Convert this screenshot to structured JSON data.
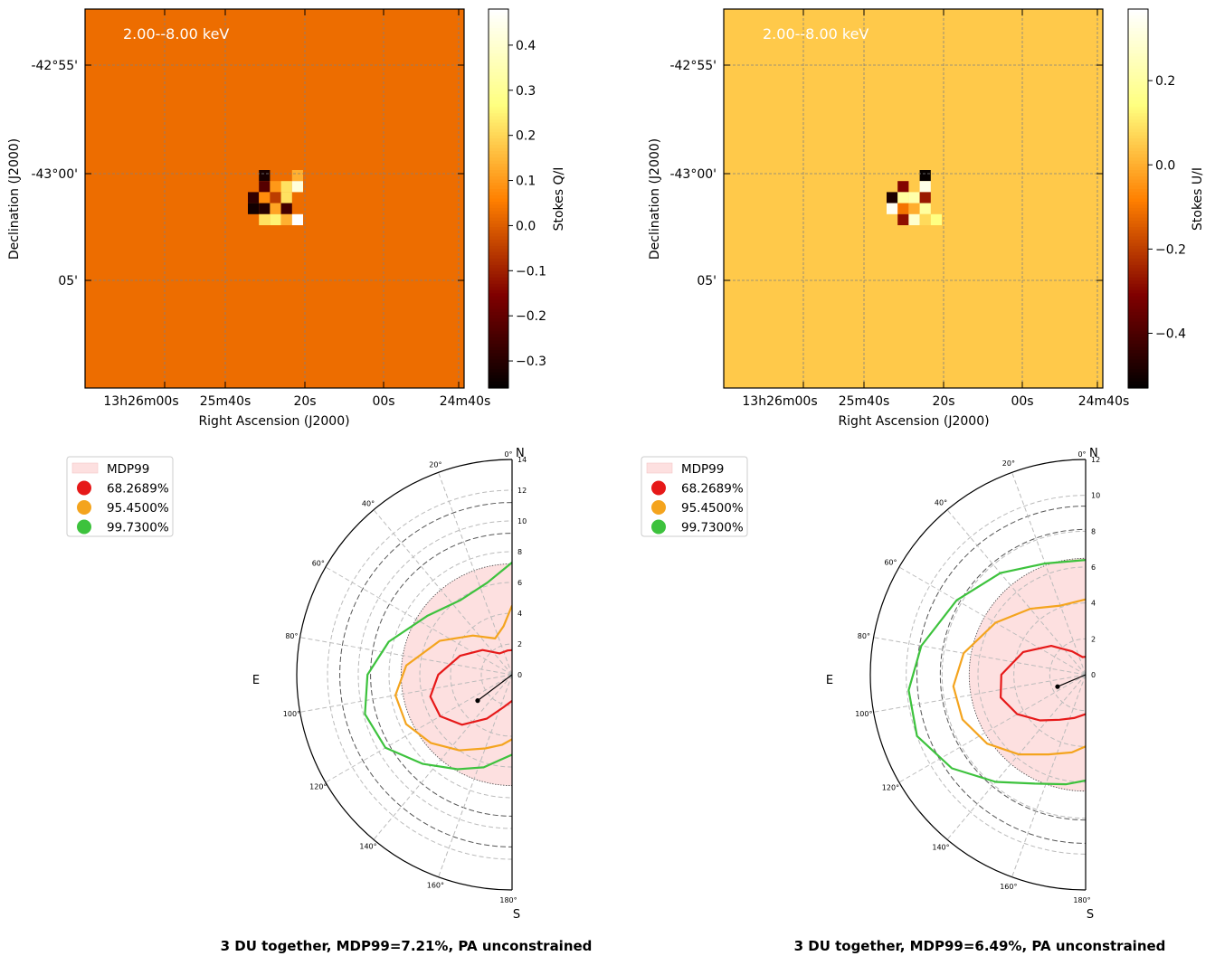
{
  "panels": [
    {
      "energy_label": "2.00--8.00 keV",
      "colorbar_label": "Stokes Q/I",
      "xlabel": "Right Ascension (J2000)",
      "ylabel": "Declination (J2000)",
      "background_value": 0.03,
      "colorbar_range": [
        -0.36,
        0.48
      ],
      "colorbar_ticks": [
        "0.4",
        "0.3",
        "0.2",
        "0.1",
        "0.0",
        "−0.1",
        "−0.2",
        "−0.3"
      ],
      "colorbar_tick_values": [
        0.4,
        0.3,
        0.2,
        0.1,
        0.0,
        -0.1,
        -0.2,
        -0.3
      ],
      "ra_ticks": [
        "13h26m00s",
        "25m40s",
        "20s",
        "00s",
        "24m40s"
      ],
      "dec_ticks": [
        "-42°55'",
        "-43°00'",
        "05'"
      ],
      "pixels": [
        {
          "col": 1,
          "row": 0,
          "v": -0.32
        },
        {
          "col": 4,
          "row": 0,
          "v": 0.14
        },
        {
          "col": 1,
          "row": 1,
          "v": -0.22
        },
        {
          "col": 2,
          "row": 1,
          "v": 0.1
        },
        {
          "col": 3,
          "row": 1,
          "v": 0.22
        },
        {
          "col": 4,
          "row": 1,
          "v": 0.42
        },
        {
          "col": 0,
          "row": 2,
          "v": -0.28
        },
        {
          "col": 1,
          "row": 2,
          "v": 0.08
        },
        {
          "col": 2,
          "row": 2,
          "v": -0.05
        },
        {
          "col": 3,
          "row": 2,
          "v": 0.22
        },
        {
          "col": 0,
          "row": 3,
          "v": -0.33
        },
        {
          "col": 1,
          "row": 3,
          "v": -0.3
        },
        {
          "col": 2,
          "row": 3,
          "v": 0.12
        },
        {
          "col": 3,
          "row": 3,
          "v": -0.25
        },
        {
          "col": 1,
          "row": 4,
          "v": 0.22
        },
        {
          "col": 2,
          "row": 4,
          "v": 0.25
        },
        {
          "col": 3,
          "row": 4,
          "v": 0.14
        },
        {
          "col": 4,
          "row": 4,
          "v": 0.48
        }
      ]
    },
    {
      "energy_label": "2.00--8.00 keV",
      "colorbar_label": "Stokes U/I",
      "xlabel": "Right Ascension (J2000)",
      "ylabel": "Declination (J2000)",
      "background_value": 0.05,
      "colorbar_range": [
        -0.53,
        0.37
      ],
      "colorbar_ticks": [
        "0.2",
        "0.0",
        "−0.2",
        "−0.4"
      ],
      "colorbar_tick_values": [
        0.2,
        0.0,
        -0.2,
        -0.4
      ],
      "ra_ticks": [
        "13h26m00s",
        "25m40s",
        "20s",
        "00s",
        "24m40s"
      ],
      "dec_ticks": [
        "-42°55'",
        "-43°00'",
        "05'"
      ],
      "pixels": [
        {
          "col": 3,
          "row": 0,
          "v": -0.52
        },
        {
          "col": 1,
          "row": 1,
          "v": -0.3
        },
        {
          "col": 3,
          "row": 1,
          "v": 0.33
        },
        {
          "col": 0,
          "row": 2,
          "v": -0.48
        },
        {
          "col": 1,
          "row": 2,
          "v": 0.2
        },
        {
          "col": 2,
          "row": 2,
          "v": 0.22
        },
        {
          "col": 3,
          "row": 2,
          "v": -0.26
        },
        {
          "col": 0,
          "row": 3,
          "v": 0.35
        },
        {
          "col": 1,
          "row": 3,
          "v": -0.1
        },
        {
          "col": 2,
          "row": 3,
          "v": 0.0
        },
        {
          "col": 3,
          "row": 3,
          "v": 0.2
        },
        {
          "col": 1,
          "row": 4,
          "v": -0.28
        },
        {
          "col": 2,
          "row": 4,
          "v": 0.28
        },
        {
          "col": 3,
          "row": 4,
          "v": 0.08
        },
        {
          "col": 4,
          "row": 4,
          "v": 0.15
        }
      ]
    }
  ],
  "polar": [
    {
      "caption": "3 DU together, MDP99=7.21%, PA unconstrained",
      "r_max": 14,
      "r_ticks": [
        0,
        2,
        4,
        6,
        8,
        10,
        12,
        14
      ],
      "theta_ticks": [
        "0°",
        "20°",
        "40°",
        "60°",
        "80°",
        "100°",
        "120°",
        "140°",
        "160°",
        "180°"
      ],
      "mdp99": 7.21,
      "point": {
        "pa_deg": 127,
        "pd": 2.8
      },
      "legend": [
        {
          "label": "MDP99",
          "color": "#fde0e0",
          "kind": "patch"
        },
        {
          "label": "68.2689%",
          "color": "#e61919",
          "kind": "dot"
        },
        {
          "label": "95.4500%",
          "color": "#f4a41e",
          "kind": "dot"
        },
        {
          "label": "99.7300%",
          "color": "#3dc23d",
          "kind": "dot"
        }
      ],
      "compass": {
        "N": "N",
        "S": "S",
        "E": "E"
      },
      "dashed_circles": [
        9.2,
        11.2
      ],
      "contours": [
        {
          "color": "#e61919",
          "pts": [
            [
              0,
              1.6
            ],
            [
              10,
              1.6
            ],
            [
              30,
              1.6
            ],
            [
              50,
              2.5
            ],
            [
              70,
              3.6
            ],
            [
              90,
              4.8
            ],
            [
              105,
              5.5
            ],
            [
              120,
              5.4
            ],
            [
              135,
              4.6
            ],
            [
              150,
              3.3
            ],
            [
              165,
              2.2
            ],
            [
              180,
              1.7
            ]
          ]
        },
        {
          "color": "#f4a41e",
          "pts": [
            [
              0,
              4.5
            ],
            [
              10,
              3.2
            ],
            [
              25,
              2.6
            ],
            [
              45,
              3.6
            ],
            [
              65,
              5.2
            ],
            [
              85,
              6.9
            ],
            [
              100,
              7.7
            ],
            [
              115,
              7.6
            ],
            [
              130,
              6.9
            ],
            [
              145,
              6.0
            ],
            [
              160,
              5.1
            ],
            [
              172,
              4.6
            ],
            [
              180,
              4.2
            ]
          ]
        },
        {
          "color": "#3dc23d",
          "pts": [
            [
              0,
              7.3
            ],
            [
              15,
              6.2
            ],
            [
              35,
              5.9
            ],
            [
              55,
              6.7
            ],
            [
              75,
              8.3
            ],
            [
              90,
              9.4
            ],
            [
              105,
              9.9
            ],
            [
              120,
              9.5
            ],
            [
              135,
              8.2
            ],
            [
              150,
              7.1
            ],
            [
              163,
              6.3
            ],
            [
              172,
              5.6
            ],
            [
              180,
              5.2
            ]
          ]
        }
      ]
    },
    {
      "caption": "3 DU together, MDP99=6.49%, PA unconstrained",
      "r_max": 12,
      "r_ticks": [
        0,
        2,
        4,
        6,
        8,
        10,
        12
      ],
      "theta_ticks": [
        "0°",
        "20°",
        "40°",
        "60°",
        "80°",
        "100°",
        "120°",
        "140°",
        "160°",
        "180°"
      ],
      "mdp99": 6.49,
      "point": {
        "pa_deg": 113,
        "pd": 1.7
      },
      "legend": [
        {
          "label": "MDP99",
          "color": "#fde0e0",
          "kind": "patch"
        },
        {
          "label": "68.2689%",
          "color": "#e61919",
          "kind": "dot"
        },
        {
          "label": "95.4500%",
          "color": "#f4a41e",
          "kind": "dot"
        },
        {
          "label": "99.7300%",
          "color": "#3dc23d",
          "kind": "dot"
        }
      ],
      "compass": {
        "N": "N",
        "S": "S",
        "E": "E"
      },
      "dashed_circles": [
        8.1,
        9.4
      ],
      "contours": [
        {
          "color": "#e61919",
          "pts": [
            [
              0,
              1.0
            ],
            [
              10,
              1.0
            ],
            [
              30,
              1.5
            ],
            [
              50,
              2.5
            ],
            [
              70,
              3.7
            ],
            [
              90,
              4.7
            ],
            [
              105,
              4.9
            ],
            [
              120,
              4.4
            ],
            [
              135,
              3.6
            ],
            [
              150,
              2.9
            ],
            [
              165,
              2.5
            ],
            [
              180,
              2.2
            ]
          ]
        },
        {
          "color": "#f4a41e",
          "pts": [
            [
              0,
              4.2
            ],
            [
              20,
              4.1
            ],
            [
              40,
              4.8
            ],
            [
              60,
              5.8
            ],
            [
              80,
              6.9
            ],
            [
              95,
              7.4
            ],
            [
              110,
              7.3
            ],
            [
              125,
              6.7
            ],
            [
              140,
              5.8
            ],
            [
              155,
              4.9
            ],
            [
              170,
              4.4
            ],
            [
              180,
              4.0
            ]
          ]
        },
        {
          "color": "#3dc23d",
          "pts": [
            [
              0,
              6.4
            ],
            [
              20,
              6.6
            ],
            [
              40,
              7.4
            ],
            [
              60,
              8.3
            ],
            [
              80,
              9.3
            ],
            [
              95,
              9.9
            ],
            [
              110,
              10.0
            ],
            [
              125,
              9.1
            ],
            [
              140,
              7.8
            ],
            [
              155,
              6.7
            ],
            [
              170,
              6.2
            ],
            [
              180,
              5.9
            ]
          ]
        }
      ]
    }
  ]
}
